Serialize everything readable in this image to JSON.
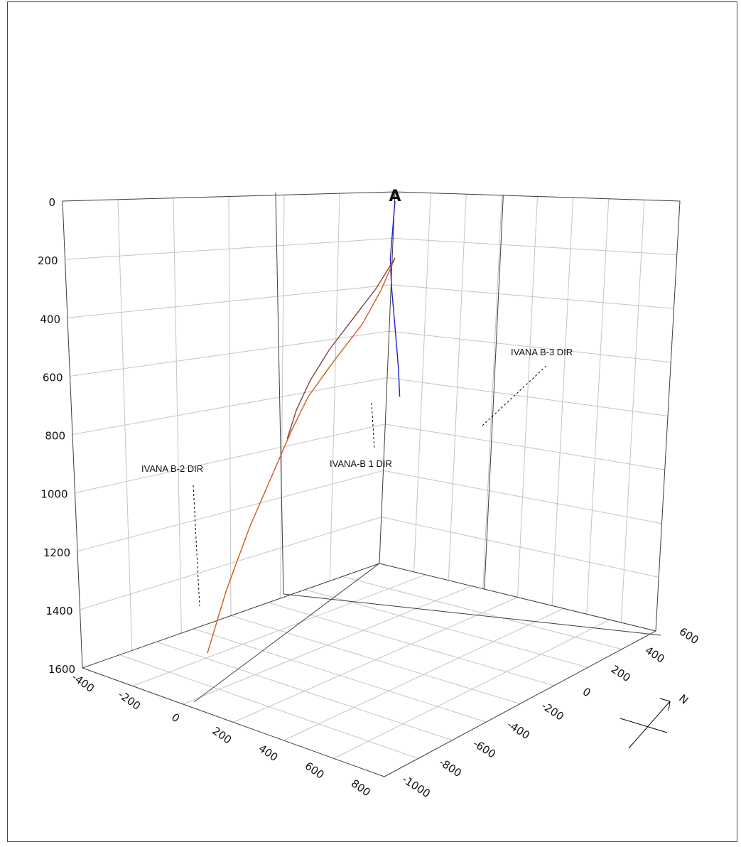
{
  "chart_data": {
    "type": "3d-line",
    "title": "",
    "depth_axis": {
      "ticks": [
        "0",
        "200",
        "400",
        "600",
        "800",
        "1000",
        "1200",
        "1400",
        "1600"
      ],
      "range": [
        0,
        1600
      ],
      "inverted": true
    },
    "x_axis": {
      "ticks": [
        "-400",
        "-200",
        "0",
        "200",
        "400",
        "600",
        "800"
      ],
      "range": [
        -400,
        800
      ]
    },
    "y_axis": {
      "ticks": [
        "600",
        "400",
        "200",
        "0",
        "-200",
        "-400",
        "-600",
        "-800",
        "-1000"
      ],
      "range": [
        -1000,
        600
      ]
    },
    "north_label": "N",
    "origin_label": "A",
    "grid": true,
    "series": [
      {
        "name": "IVANA-B 1 DIR",
        "color": "#1f1fd6",
        "points": [
          [
            0,
            0,
            0
          ],
          [
            0,
            -10,
            100
          ],
          [
            0,
            -20,
            200
          ],
          [
            -10,
            -25,
            300
          ],
          [
            -25,
            -30,
            400
          ],
          [
            -40,
            -35,
            500
          ],
          [
            -55,
            -40,
            600
          ],
          [
            -65,
            -45,
            700
          ]
        ]
      },
      {
        "name": "IVANA B-2 DIR",
        "color": "#d4581e",
        "points": [
          [
            0,
            0,
            200
          ],
          [
            60,
            0,
            300
          ],
          [
            140,
            0,
            400
          ],
          [
            260,
            0,
            500
          ],
          [
            370,
            0,
            600
          ],
          [
            440,
            0,
            700
          ],
          [
            500,
            0,
            800
          ],
          [
            560,
            0,
            900
          ],
          [
            620,
            0,
            1000
          ],
          [
            670,
            0,
            1100
          ],
          [
            720,
            0,
            1200
          ],
          [
            760,
            0,
            1300
          ],
          [
            800,
            0,
            1400
          ]
        ]
      },
      {
        "name": "IVANA B-3 DIR",
        "color": "#8a4040",
        "points": [
          [
            0,
            0,
            200
          ],
          [
            0,
            -80,
            300
          ],
          [
            0,
            -180,
            400
          ],
          [
            0,
            -280,
            500
          ],
          [
            0,
            -360,
            600
          ],
          [
            0,
            -420,
            700
          ],
          [
            0,
            -460,
            800
          ]
        ]
      }
    ]
  },
  "labels": {
    "well1": "IVANA-B 1 DIR",
    "well2": "IVANA B-2 DIR",
    "well3": "IVANA B-3 DIR"
  }
}
